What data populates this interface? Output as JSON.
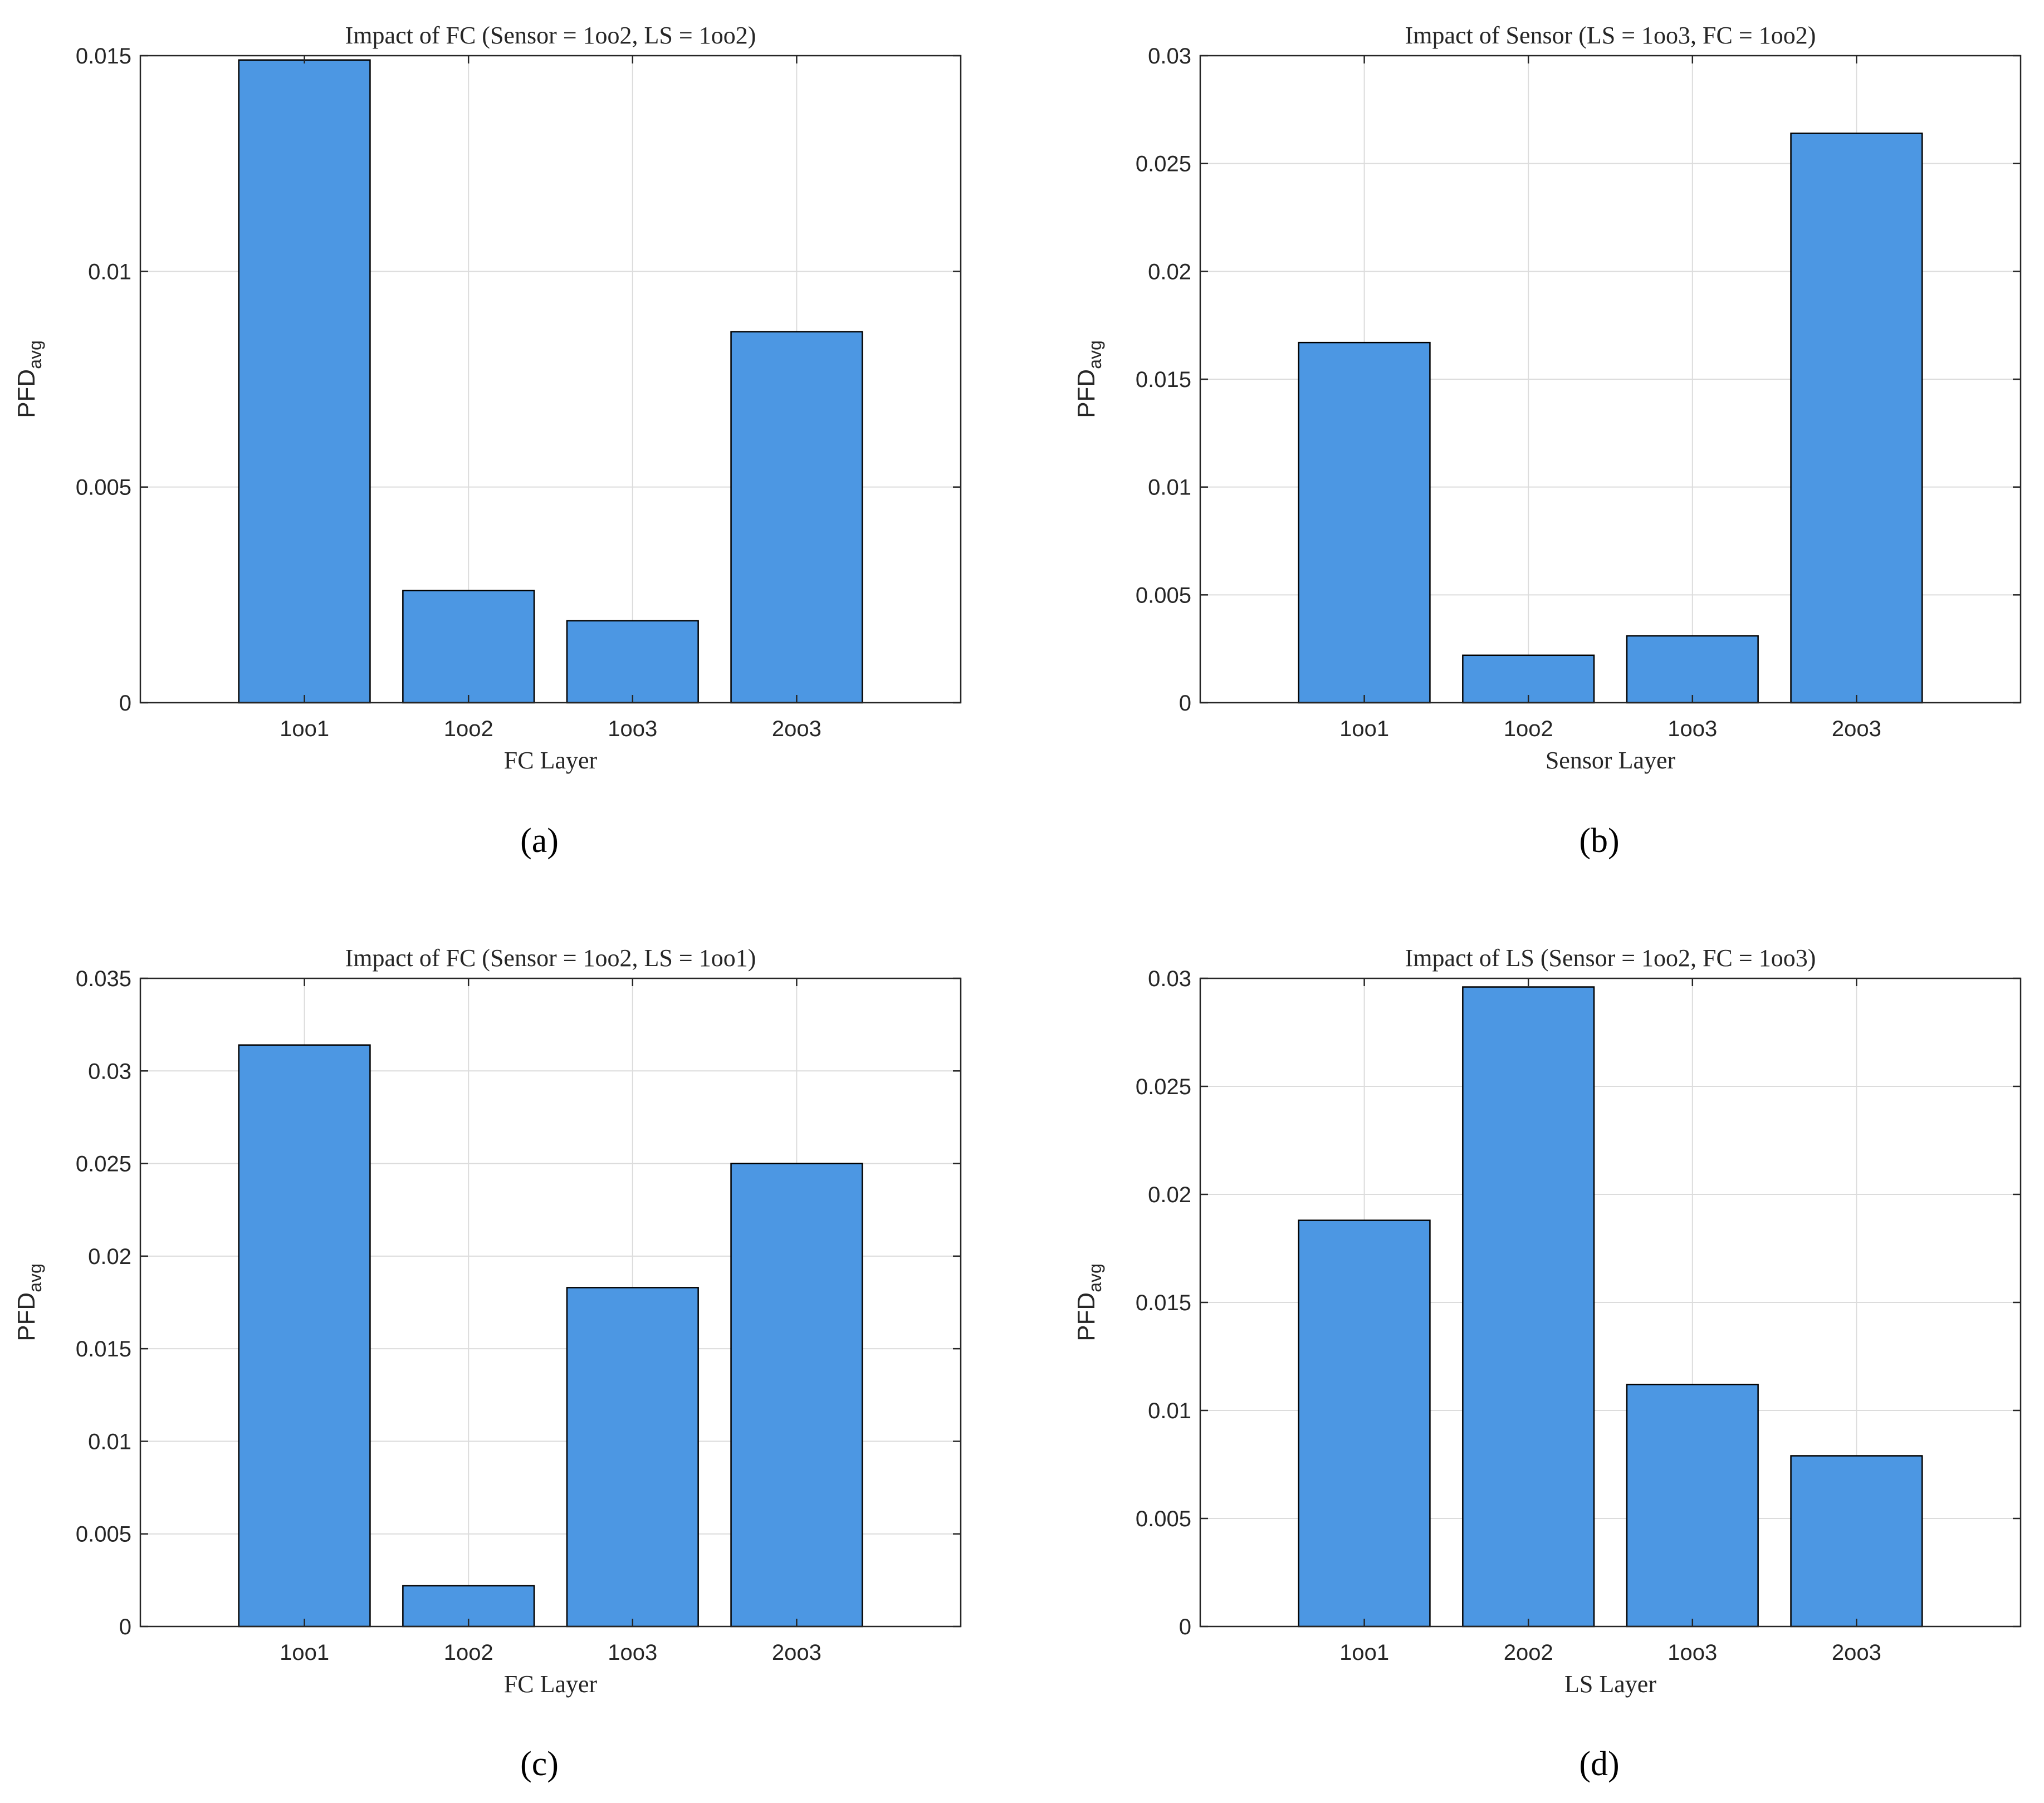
{
  "figure": {
    "bar_color": "#4C97E3",
    "edge_color": "#000000",
    "grid_color": "#dcdcdc"
  },
  "chart_data": [
    {
      "panel": "a",
      "type": "bar",
      "title": "Impact of FC (Sensor = 1oo2, LS = 1oo2)",
      "xlabel": "FC Layer",
      "ylabel_main": "PFD",
      "ylabel_sub": "avg",
      "caption": "(a)",
      "categories": [
        "1oo1",
        "1oo2",
        "1oo3",
        "2oo3"
      ],
      "values": [
        0.0149,
        0.0026,
        0.0019,
        0.0086
      ],
      "ylim": [
        0,
        0.015
      ],
      "yticks": [
        0,
        0.005,
        0.01,
        0.015
      ],
      "ytick_labels": [
        "0",
        "0.005",
        "0.01",
        "0.015"
      ],
      "grid": true
    },
    {
      "panel": "b",
      "type": "bar",
      "title": "Impact of Sensor (LS = 1oo3, FC = 1oo2)",
      "xlabel": "Sensor Layer",
      "ylabel_main": "PFD",
      "ylabel_sub": "avg",
      "caption": "(b)",
      "categories": [
        "1oo1",
        "1oo2",
        "1oo3",
        "2oo3"
      ],
      "values": [
        0.0167,
        0.0022,
        0.0031,
        0.0264
      ],
      "ylim": [
        0,
        0.03
      ],
      "yticks": [
        0,
        0.005,
        0.01,
        0.015,
        0.02,
        0.025,
        0.03
      ],
      "ytick_labels": [
        "0",
        "0.005",
        "0.01",
        "0.015",
        "0.02",
        "0.025",
        "0.03"
      ],
      "grid": true
    },
    {
      "panel": "c",
      "type": "bar",
      "title": "Impact of FC (Sensor = 1oo2, LS = 1oo1)",
      "xlabel": "FC Layer",
      "ylabel_main": "PFD",
      "ylabel_sub": "avg",
      "caption": "(c)",
      "categories": [
        "1oo1",
        "1oo2",
        "1oo3",
        "2oo3"
      ],
      "values": [
        0.0314,
        0.0022,
        0.0183,
        0.025
      ],
      "ylim": [
        0,
        0.035
      ],
      "yticks": [
        0,
        0.005,
        0.01,
        0.015,
        0.02,
        0.025,
        0.03,
        0.035
      ],
      "ytick_labels": [
        "0",
        "0.005",
        "0.01",
        "0.015",
        "0.02",
        "0.025",
        "0.03",
        "0.035"
      ],
      "grid": true
    },
    {
      "panel": "d",
      "type": "bar",
      "title": "Impact of LS (Sensor = 1oo2, FC = 1oo3)",
      "xlabel": "LS Layer",
      "ylabel_main": "PFD",
      "ylabel_sub": "avg",
      "caption": "(d)",
      "categories": [
        "1oo1",
        "2oo2",
        "1oo3",
        "2oo3"
      ],
      "values": [
        0.0188,
        0.0296,
        0.0112,
        0.0079
      ],
      "ylim": [
        0,
        0.03
      ],
      "yticks": [
        0,
        0.005,
        0.01,
        0.015,
        0.02,
        0.025,
        0.03
      ],
      "ytick_labels": [
        "0",
        "0.005",
        "0.01",
        "0.015",
        "0.02",
        "0.025",
        "0.03"
      ],
      "grid": true
    }
  ]
}
